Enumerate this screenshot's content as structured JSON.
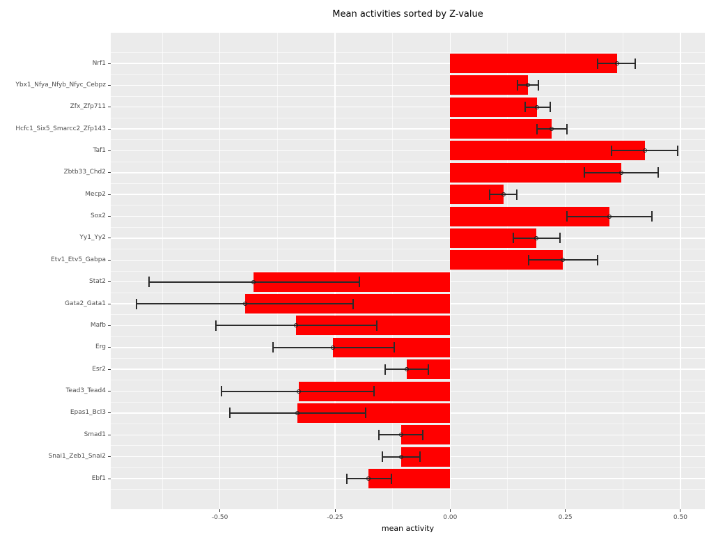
{
  "title": "Mean activities sorted by Z-value",
  "chart_data": {
    "type": "bar",
    "orientation": "horizontal",
    "title": "Mean activities sorted by Z-value",
    "xlabel": "mean activity",
    "ylabel": "",
    "xlim": [
      -0.737,
      0.553
    ],
    "x_ticks": [
      -0.5,
      -0.25,
      0,
      0.25,
      0.5
    ],
    "x_tick_labels": [
      "-0.50",
      "-0.25",
      "0.00",
      "0.25",
      "0.50"
    ],
    "x_minor_ticks": [
      -0.625,
      -0.375,
      -0.125,
      0.125,
      0.375
    ],
    "grid": true,
    "legend": false,
    "colors": {
      "bar_fill": "#FF0000",
      "panel_background": "#EBEBEB",
      "gridline": "#FFFFFF",
      "errorbar": "#2B2B2B",
      "axis_text": "#4D4D4D",
      "tick_mark": "#333333",
      "title_text": "#000000"
    },
    "rows": [
      {
        "label": "Nrf1",
        "mean": 0.363,
        "lo": 0.32,
        "hi": 0.402
      },
      {
        "label": "Ybx1_Nfya_Nfyb_Nfyc_Cebpz",
        "mean": 0.169,
        "lo": 0.146,
        "hi": 0.192
      },
      {
        "label": "Zfx_Zfp711",
        "mean": 0.189,
        "lo": 0.163,
        "hi": 0.217
      },
      {
        "label": "Hcfc1_Six5_Smarcc2_Zfp143",
        "mean": 0.221,
        "lo": 0.188,
        "hi": 0.253
      },
      {
        "label": "Taf1",
        "mean": 0.423,
        "lo": 0.351,
        "hi": 0.494
      },
      {
        "label": "Zbtb33_Chd2",
        "mean": 0.371,
        "lo": 0.292,
        "hi": 0.452
      },
      {
        "label": "Mecp2",
        "mean": 0.116,
        "lo": 0.085,
        "hi": 0.145
      },
      {
        "label": "Sox2",
        "mean": 0.346,
        "lo": 0.253,
        "hi": 0.438
      },
      {
        "label": "Yy1_Yy2",
        "mean": 0.187,
        "lo": 0.137,
        "hi": 0.238
      },
      {
        "label": "Etv1_Etv5_Gabpa",
        "mean": 0.245,
        "lo": 0.17,
        "hi": 0.32
      },
      {
        "label": "Stat2",
        "mean": -0.427,
        "lo": -0.654,
        "hi": -0.197
      },
      {
        "label": "Gata2_Gata1",
        "mean": -0.445,
        "lo": -0.681,
        "hi": -0.21
      },
      {
        "label": "Mafb",
        "mean": -0.334,
        "lo": -0.509,
        "hi": -0.16
      },
      {
        "label": "Erg",
        "mean": -0.255,
        "lo": -0.385,
        "hi": -0.122
      },
      {
        "label": "Esr2",
        "mean": -0.094,
        "lo": -0.141,
        "hi": -0.047
      },
      {
        "label": "Tead3_Tead4",
        "mean": -0.329,
        "lo": -0.497,
        "hi": -0.165
      },
      {
        "label": "Epas1_Bcl3",
        "mean": -0.332,
        "lo": -0.479,
        "hi": -0.184
      },
      {
        "label": "Smad1",
        "mean": -0.106,
        "lo": -0.155,
        "hi": -0.059
      },
      {
        "label": "Snai1_Zeb1_Snai2",
        "mean": -0.106,
        "lo": -0.147,
        "hi": -0.066
      },
      {
        "label": "Ebf1",
        "mean": -0.177,
        "lo": -0.225,
        "hi": -0.128
      }
    ]
  }
}
